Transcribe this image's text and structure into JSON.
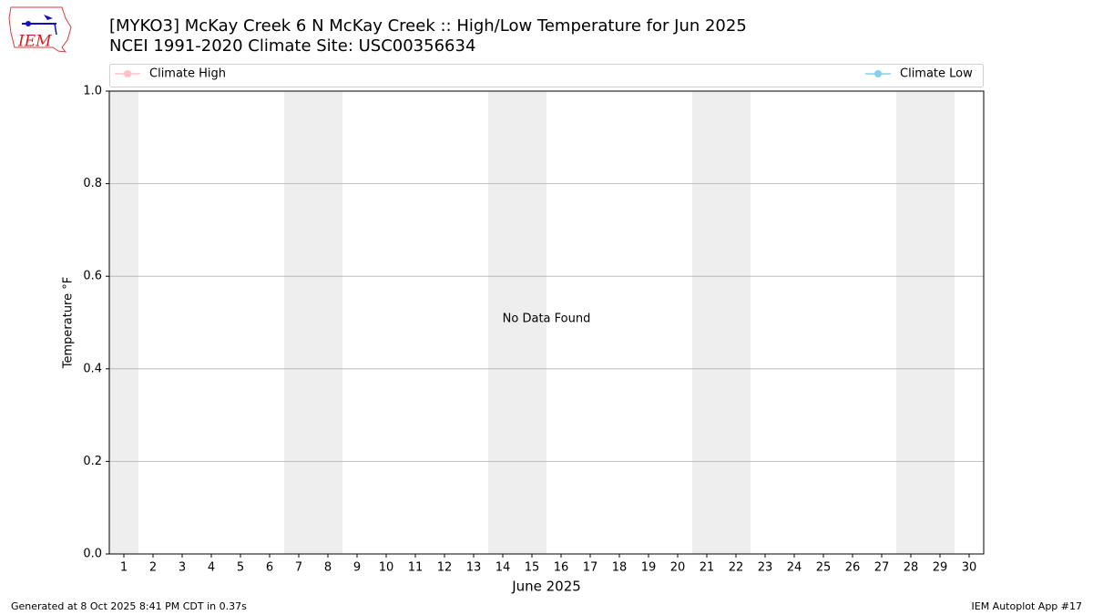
{
  "logo_text": "IEM",
  "footer": {
    "left": "Generated at 8 Oct 2025 8:41 PM CDT in 0.37s",
    "right": "IEM Autoplot App #17"
  },
  "chart_data": {
    "type": "line",
    "title": "[MYKO3] McKay Creek 6 N McKay Creek :: High/Low Temperature for Jun 2025",
    "subtitle": "NCEI 1991-2020 Climate Site: USC00356634",
    "xlabel": "June 2025",
    "ylabel": "Temperature °F",
    "annotation": "No Data Found",
    "x": [],
    "series": [
      {
        "name": "Climate High",
        "color": "#ffc0cb",
        "values": []
      },
      {
        "name": "Climate Low",
        "color": "#87ceeb",
        "values": []
      }
    ],
    "shaded_spans": [
      [
        0.5,
        1.5
      ],
      [
        6.5,
        8.5
      ],
      [
        13.5,
        15.5
      ],
      [
        20.5,
        22.5
      ],
      [
        27.5,
        29.5
      ]
    ],
    "shade_color": "#eeeeee",
    "xlim": [
      0.5,
      30.5
    ],
    "xticks": [
      1,
      2,
      3,
      4,
      5,
      6,
      7,
      8,
      9,
      10,
      11,
      12,
      13,
      14,
      15,
      16,
      17,
      18,
      19,
      20,
      21,
      22,
      23,
      24,
      25,
      26,
      27,
      28,
      29,
      30
    ],
    "ylim": [
      0,
      1
    ],
    "yticks": [
      {
        "value": 0,
        "label": "0.0"
      },
      0.2,
      0.4,
      0.6,
      0.8,
      {
        "value": 1,
        "label": "1.0"
      }
    ],
    "grid": true
  }
}
